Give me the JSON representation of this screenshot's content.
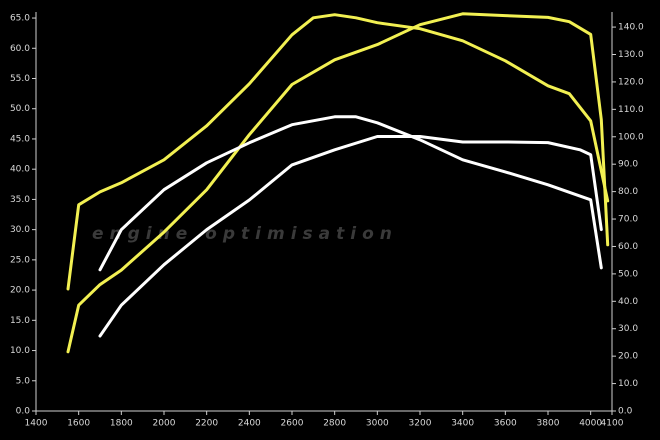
{
  "chart_data": {
    "type": "line",
    "watermark": "engine optimisation",
    "xlim": [
      1400,
      4100
    ],
    "xticks": [
      1400,
      1600,
      1800,
      2000,
      2200,
      2400,
      2600,
      2800,
      3000,
      3200,
      3400,
      3600,
      3800,
      4000,
      4100
    ],
    "ylim": [
      0,
      66
    ],
    "yticks": [
      {
        "value": 0,
        "label": "0.0"
      },
      {
        "value": 5,
        "label": "5.0"
      },
      {
        "value": 10,
        "label": "10.0"
      },
      {
        "value": 15,
        "label": "15.0"
      },
      {
        "value": 20,
        "label": "20.0"
      },
      {
        "value": 25,
        "label": "25.0"
      },
      {
        "value": 30,
        "label": "30.0"
      },
      {
        "value": 35,
        "label": "35.0"
      },
      {
        "value": 40,
        "label": "40.0"
      },
      {
        "value": 45,
        "label": "45.0"
      },
      {
        "value": 50,
        "label": "50.0"
      },
      {
        "value": 55,
        "label": "55.0"
      },
      {
        "value": 60,
        "label": "60.0"
      },
      {
        "value": 65,
        "label": "65.0"
      }
    ],
    "y2lim": [
      0,
      145.5
    ],
    "y2ticks": [
      {
        "value": 0,
        "label": "0.0"
      },
      {
        "value": 10,
        "label": "10.0"
      },
      {
        "value": 20,
        "label": "20.0"
      },
      {
        "value": 30,
        "label": "30.0"
      },
      {
        "value": 40,
        "label": "40.0"
      },
      {
        "value": 50,
        "label": "50.0"
      },
      {
        "value": 60,
        "label": "60.0"
      },
      {
        "value": 70,
        "label": "70.0"
      },
      {
        "value": 80,
        "label": "80.0"
      },
      {
        "value": 90,
        "label": "90.0"
      },
      {
        "value": 100,
        "label": "100.0"
      },
      {
        "value": 110,
        "label": "110.0"
      },
      {
        "value": 120,
        "label": "120.0"
      },
      {
        "value": 130,
        "label": "130.0"
      },
      {
        "value": 140,
        "label": "140.0"
      }
    ],
    "grid": false,
    "series": [
      {
        "color": "#f2f052",
        "axis": "y2",
        "x": [
          1550,
          1600,
          1700,
          1800,
          2000,
          2200,
          2400,
          2600,
          2700,
          2800,
          2900,
          3000,
          3200,
          3400,
          3600,
          3800,
          3900,
          4000,
          4050,
          4080
        ],
        "values": [
          44.5,
          75.2,
          79.9,
          83.2,
          91.6,
          104.0,
          119.3,
          137.2,
          143.4,
          144.5,
          143.4,
          141.6,
          139.4,
          135.0,
          127.7,
          118.6,
          115.7,
          105.8,
          87.6,
          76.6
        ]
      },
      {
        "color": "#f2f052",
        "x": [
          1550,
          1600,
          1700,
          1800,
          2000,
          2200,
          2400,
          2600,
          2800,
          3000,
          3200,
          3400,
          3600,
          3800,
          3900,
          4000,
          4050,
          4080
        ],
        "values": [
          9.8,
          17.5,
          20.9,
          23.3,
          29.6,
          36.6,
          45.7,
          54.0,
          58.1,
          60.6,
          63.9,
          65.7,
          65.4,
          65.1,
          64.4,
          62.3,
          48.2,
          27.5
        ]
      },
      {
        "color": "#ffffff",
        "axis": "y2",
        "x": [
          1700,
          1800,
          2000,
          2200,
          2400,
          2600,
          2800,
          2900,
          3000,
          3200,
          3400,
          3600,
          3800,
          4000,
          4050
        ],
        "values": [
          51.5,
          66.1,
          80.7,
          90.5,
          97.8,
          104.4,
          107.3,
          107.3,
          105.1,
          98.9,
          91.6,
          87.2,
          82.5,
          77.0,
          52.2
        ]
      },
      {
        "color": "#ffffff",
        "x": [
          1700,
          1800,
          2000,
          2200,
          2400,
          2600,
          2800,
          3000,
          3200,
          3400,
          3600,
          3800,
          3950,
          4000,
          4050
        ],
        "values": [
          12.4,
          17.5,
          24.2,
          30.0,
          34.9,
          40.7,
          43.2,
          45.4,
          45.4,
          44.5,
          44.5,
          44.4,
          43.2,
          42.4,
          30.0
        ]
      }
    ]
  }
}
